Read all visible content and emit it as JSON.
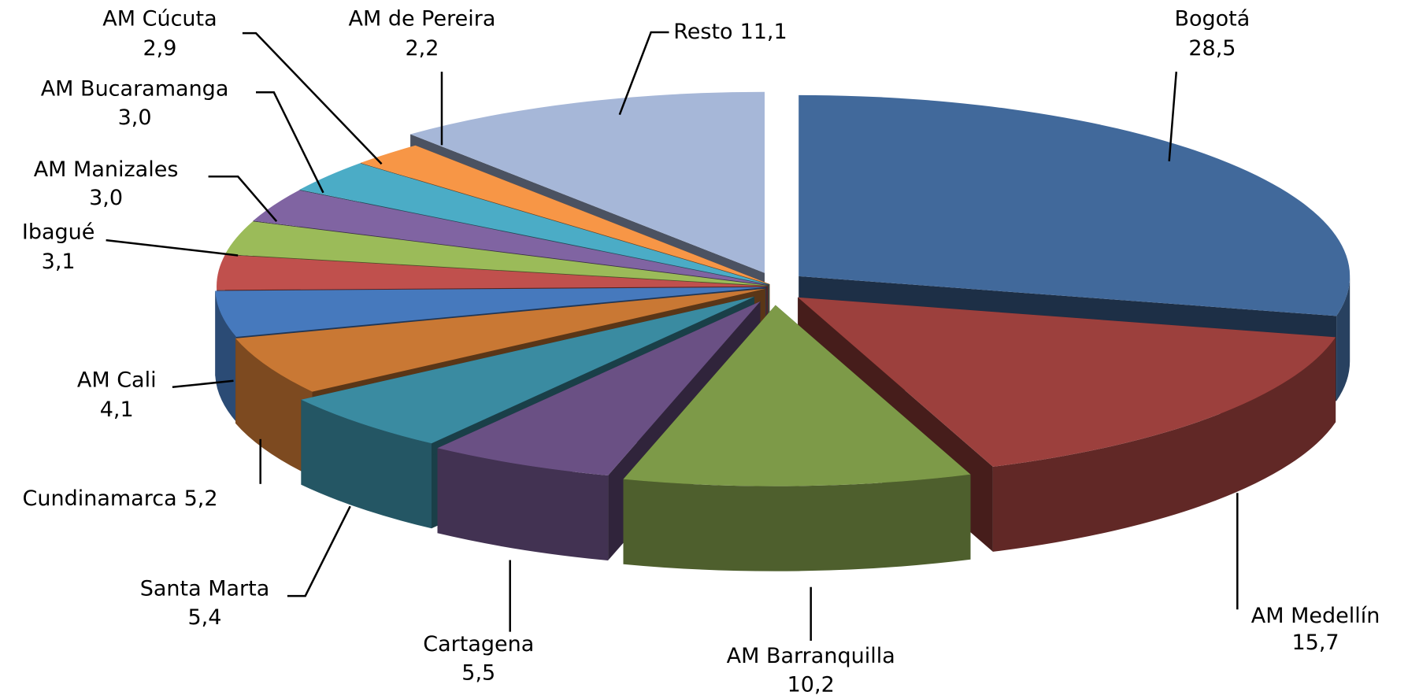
{
  "chart_data": {
    "type": "pie3d",
    "categories": [
      "Bogotá",
      "AM Medellín",
      "AM Barranquilla",
      "Cartagena",
      "Santa Marta",
      "Cundinamarca",
      "AM Cali",
      "Ibagué",
      "AM Manizales",
      "AM Bucaramanga",
      "AM Cúcuta",
      "AM de Pereira",
      "Resto"
    ],
    "values": [
      28.5,
      15.7,
      10.2,
      5.5,
      5.4,
      5.2,
      4.1,
      3.1,
      3.0,
      3.0,
      2.9,
      2.2,
      11.1
    ],
    "value_labels": [
      "28,5",
      "15,7",
      "10,2",
      "5,5",
      "5,4",
      "5,2",
      "4,1",
      "3,1",
      "3,0",
      "3,0",
      "2,9",
      "2,2",
      "11,1"
    ],
    "colors": [
      "#41699b",
      "#9c403d",
      "#7d9a48",
      "#6a5084",
      "#3a8ba1",
      "#c97834",
      "#4679bd",
      "#c0504d",
      "#9bbb59",
      "#8064a2",
      "#4bacc6",
      "#f79646",
      "#a6b7d8"
    ]
  }
}
